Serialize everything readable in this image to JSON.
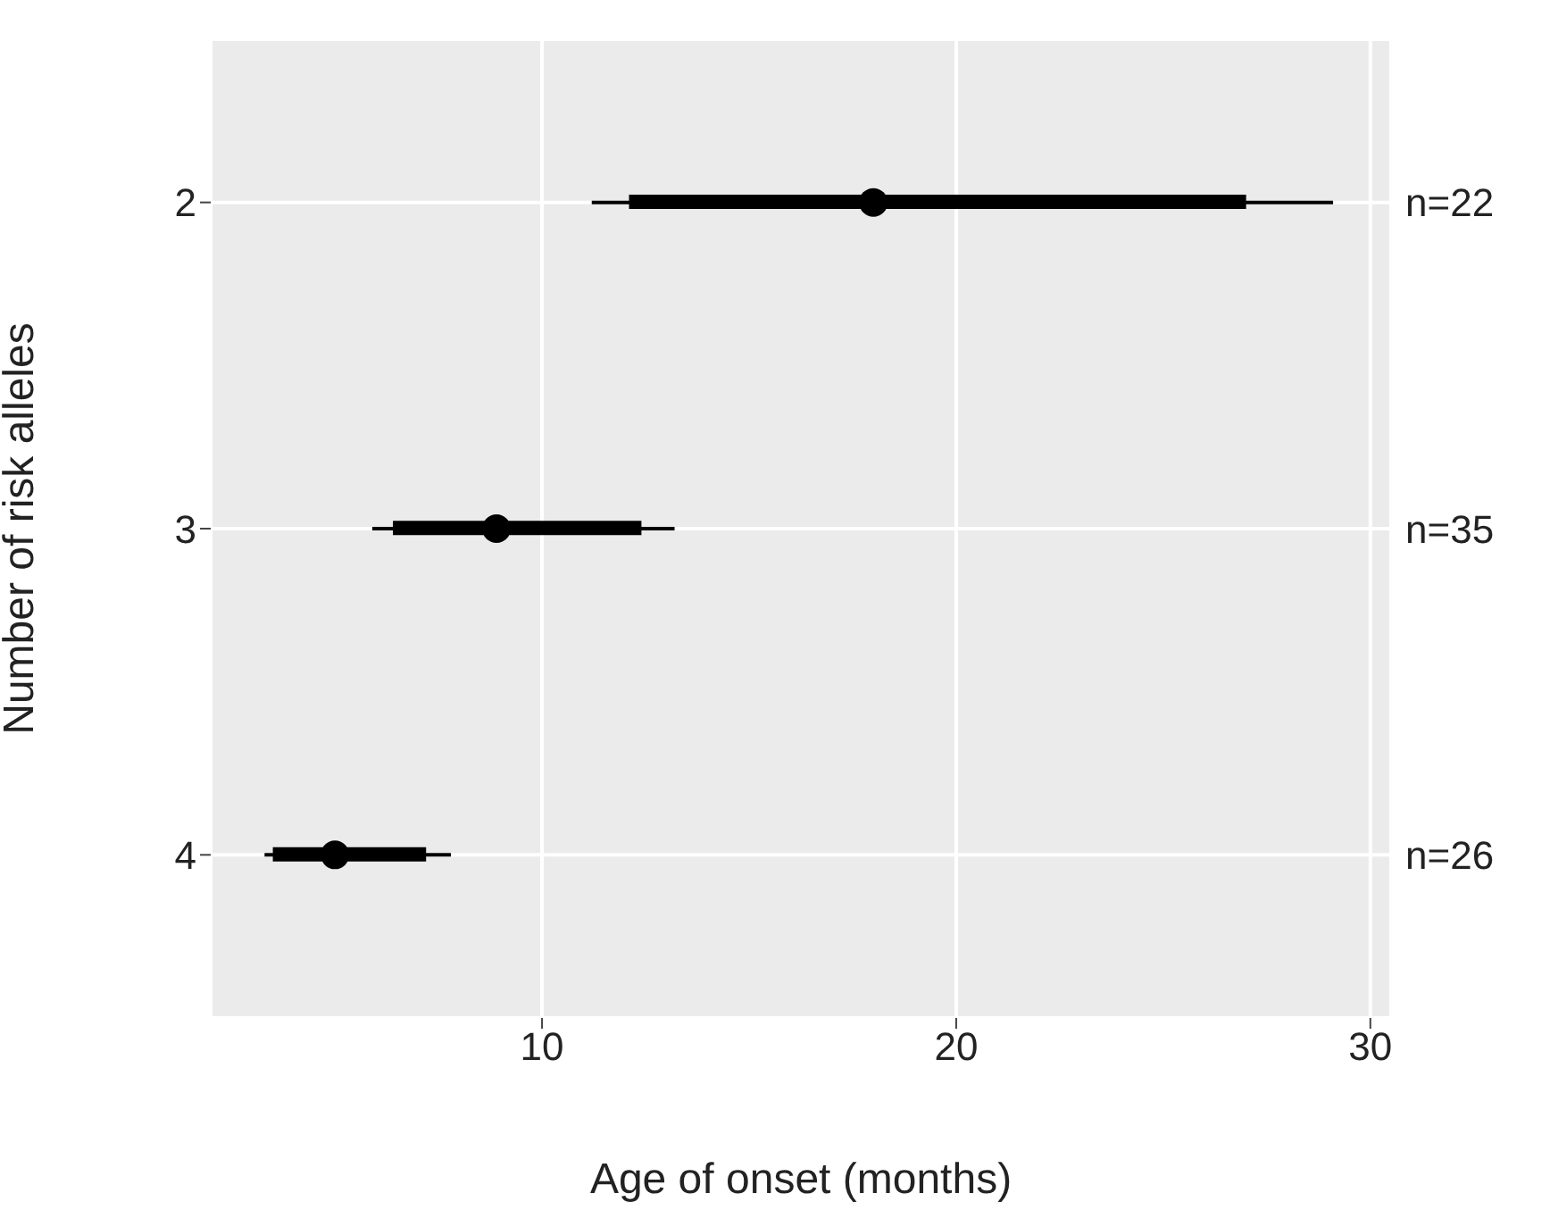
{
  "chart_data": {
    "type": "scatter",
    "orientation": "horizontal",
    "xlabel": "Age of onset (months)",
    "ylabel": "Number of risk alleles",
    "categories": [
      "2",
      "3",
      "4"
    ],
    "series": [
      {
        "type": "bar",
        "color": "#000000",
        "base": [
          12.1,
          6.4,
          3.5
        ],
        "values": [
          14.9,
          6.0,
          3.7
        ]
      },
      {
        "color": "#000000",
        "values": [
          18,
          8.9,
          5.0
        ],
        "errors": [
          [
            11.2,
            29.1
          ],
          [
            5.9,
            13.2
          ],
          [
            3.3,
            7.8
          ]
        ]
      }
    ],
    "xlim": [
      2,
      30.5
    ],
    "xticks": [
      10,
      20,
      30
    ],
    "grid": true,
    "marker": "circle",
    "annotations": [
      "n=22",
      "n=35",
      "n=26"
    ]
  }
}
